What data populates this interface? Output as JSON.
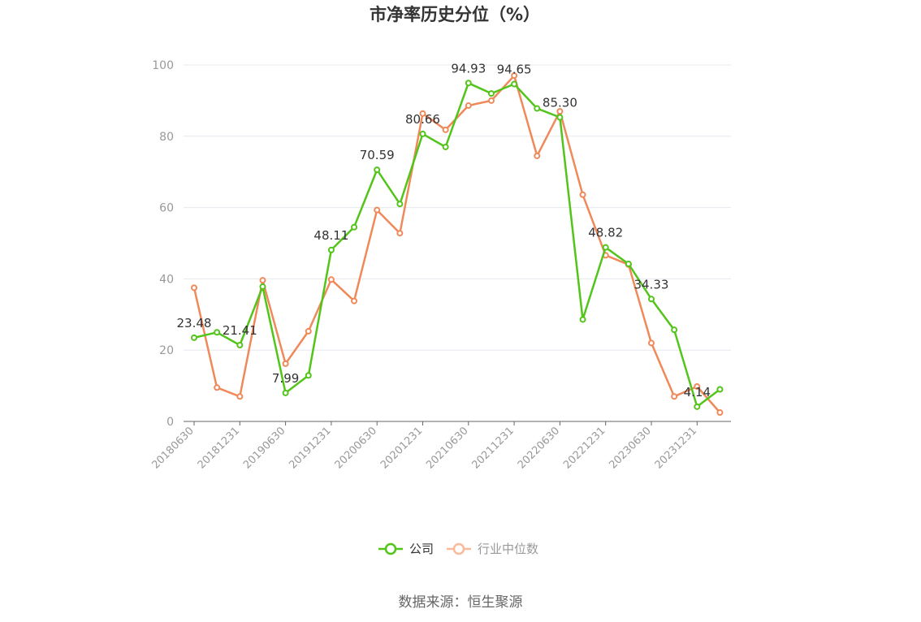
{
  "chart_data": {
    "type": "line",
    "title": "市净率历史分位（%）",
    "x": [
      "20180630",
      "20180930",
      "20181231",
      "20190331",
      "20190630",
      "20190930",
      "20191231",
      "20200331",
      "20200630",
      "20200930",
      "20201231",
      "20210331",
      "20210630",
      "20210930",
      "20211231",
      "20220331",
      "20220630",
      "20220930",
      "20221231",
      "20230331",
      "20230630",
      "20230930",
      "20231231",
      "20240331"
    ],
    "x_tick_labels": [
      "20180630",
      "20181231",
      "20190630",
      "20191231",
      "20200630",
      "20201231",
      "20210630",
      "20211231",
      "20220630",
      "20221231",
      "20230630",
      "20231231"
    ],
    "ylim": [
      0,
      100
    ],
    "y_ticks": [
      0,
      20,
      40,
      60,
      80,
      100
    ],
    "grid": true,
    "legend_position": "bottom-center",
    "series": [
      {
        "name": "公司",
        "color": "#52c41a",
        "values": [
          23.48,
          25.0,
          21.41,
          37.8,
          7.99,
          12.9,
          48.11,
          54.5,
          70.59,
          61.0,
          80.66,
          77.0,
          94.93,
          92.0,
          94.65,
          87.8,
          85.3,
          28.6,
          48.82,
          44.2,
          34.33,
          25.7,
          4.14,
          9.0
        ],
        "labels": {
          "0": "23.48",
          "2": "21.41",
          "4": "7.99",
          "6": "48.11",
          "8": "70.59",
          "10": "80.66",
          "12": "94.93",
          "14": "94.65",
          "16": "85.30",
          "18": "48.82",
          "20": "34.33",
          "22": "4.14"
        }
      },
      {
        "name": "行业中位数",
        "color": "#f0895a",
        "values": [
          37.5,
          9.5,
          7.0,
          39.6,
          16.2,
          25.3,
          39.8,
          33.8,
          59.3,
          52.8,
          86.4,
          81.8,
          88.6,
          90.0,
          97.0,
          74.5,
          87.0,
          63.6,
          46.6,
          44.0,
          22.0,
          7.0,
          9.8,
          2.5
        ]
      }
    ]
  },
  "footer": {
    "source": "数据来源：恒生聚源"
  }
}
